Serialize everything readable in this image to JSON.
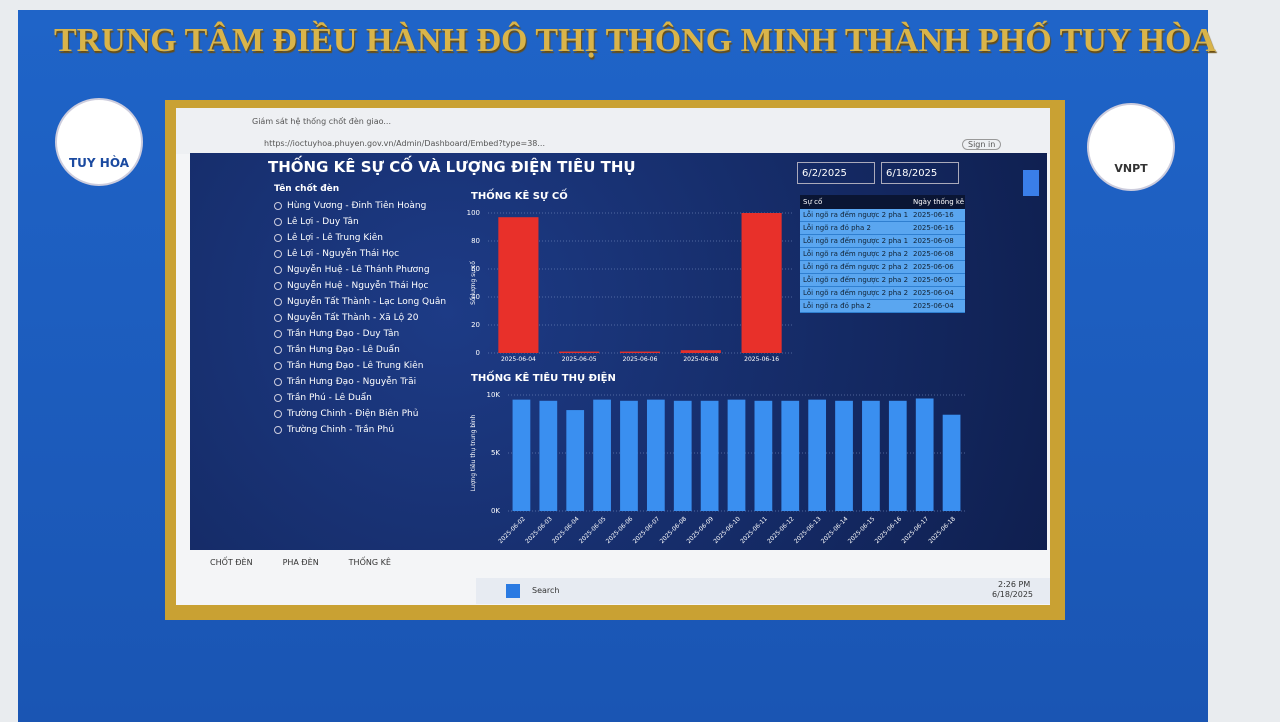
{
  "wall": {
    "title": "TRUNG TÂM ĐIỀU HÀNH ĐÔ THỊ THÔNG MINH THÀNH PHỐ TUY HÒA",
    "logo_left": "TUY HÒA",
    "logo_right": "VNPT"
  },
  "browser": {
    "tab_title": "Giám sát hệ thống chốt đèn giao...",
    "url": "https://ioctuyhoa.phuyen.gov.vn/Admin/Dashboard/Embed?type=38...",
    "sign_in": "Sign in"
  },
  "dashboard": {
    "title": "THỐNG KÊ SỰ CỐ VÀ LƯỢNG ĐIỆN TIÊU THỤ",
    "date_from": "6/2/2025",
    "date_to": "6/18/2025",
    "list_title": "Tên chốt đèn",
    "intersections": [
      "Hùng Vương - Đinh Tiên Hoàng",
      "Lê Lợi - Duy Tân",
      "Lê Lợi - Lê Trung Kiên",
      "Lê Lợi - Nguyễn Thái Học",
      "Nguyễn Huệ - Lê Thánh Phương",
      "Nguyễn Huệ - Nguyễn Thái Học",
      "Nguyễn Tất Thành - Lạc Long Quân",
      "Nguyễn Tất Thành - Xã Lộ 20",
      "Trần Hưng Đạo - Duy Tân",
      "Trần Hưng Đạo - Lê Duẩn",
      "Trần Hưng Đạo - Lê Trung Kiên",
      "Trần Hưng Đạo - Nguyễn Trãi",
      "Trần Phú - Lê Duẩn",
      "Trường Chinh - Điện Biên Phủ",
      "Trường Chinh - Trần Phú"
    ],
    "table": {
      "headers": [
        "Sự cố",
        "Ngày thống kê"
      ],
      "rows": [
        [
          "Lỗi ngõ ra đếm ngược 2 pha 1",
          "2025-06-16"
        ],
        [
          "Lỗi ngõ ra đỏ pha 2",
          "2025-06-16"
        ],
        [
          "Lỗi ngõ ra đếm ngược 2 pha 1",
          "2025-06-08"
        ],
        [
          "Lỗi ngõ ra đếm ngược 2 pha 2",
          "2025-06-08"
        ],
        [
          "Lỗi ngõ ra đếm ngược 2 pha 2",
          "2025-06-06"
        ],
        [
          "Lỗi ngõ ra đếm ngược 2 pha 2",
          "2025-06-05"
        ],
        [
          "Lỗi ngõ ra đếm ngược 2 pha 2",
          "2025-06-04"
        ],
        [
          "Lỗi ngõ ra đỏ pha 2",
          "2025-06-04"
        ]
      ]
    },
    "tabs": [
      "CHỐT ĐÈN",
      "PHA ĐÈN",
      "THỐNG KÊ"
    ]
  },
  "chart_data": [
    {
      "type": "bar",
      "title": "THỐNG KÊ SỰ CỐ",
      "ylabel": "Số lượng sự cố",
      "categories": [
        "2025-06-04",
        "2025-06-05",
        "2025-06-06",
        "2025-06-08",
        "2025-06-16"
      ],
      "values": [
        97,
        1,
        1,
        2,
        100
      ],
      "color": "#e8302a",
      "ylim": [
        0,
        100
      ],
      "yticks": [
        0,
        20,
        40,
        60,
        80,
        100
      ],
      "grid": true
    },
    {
      "type": "bar",
      "title": "THỐNG KÊ TIÊU THỤ ĐIỆN",
      "ylabel": "Lượng tiêu thụ trung bình",
      "categories": [
        "2025-06-02",
        "2025-06-03",
        "2025-06-04",
        "2025-06-05",
        "2025-06-06",
        "2025-06-07",
        "2025-06-08",
        "2025-06-09",
        "2025-06-10",
        "2025-06-11",
        "2025-06-12",
        "2025-06-13",
        "2025-06-14",
        "2025-06-15",
        "2025-06-16",
        "2025-06-17",
        "2025-06-18"
      ],
      "values": [
        9600,
        9500,
        8700,
        9600,
        9500,
        9600,
        9500,
        9500,
        9600,
        9500,
        9500,
        9600,
        9500,
        9500,
        9500,
        9700,
        8300
      ],
      "color": "#3a8ff0",
      "ylim": [
        0,
        10000
      ],
      "yticks": [
        {
          "value": 0,
          "label": "0K"
        },
        {
          "value": 5000,
          "label": "5K"
        },
        {
          "value": 10000,
          "label": "10K"
        }
      ],
      "grid": true
    }
  ],
  "taskbar": {
    "search": "Search",
    "time": "2:26 PM",
    "date": "6/18/2025"
  }
}
